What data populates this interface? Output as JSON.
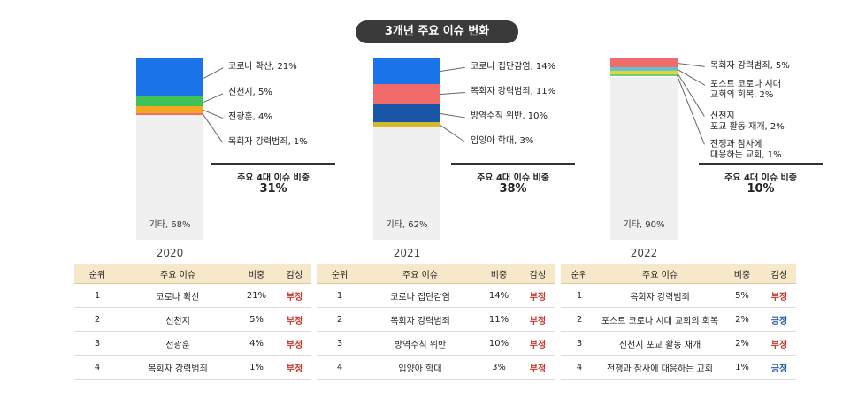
{
  "header": {
    "title": "3개년 주요 이슈 변화"
  },
  "chart_data": [
    {
      "type": "bar",
      "year": "2020",
      "segments": [
        {
          "label": "코로나 확산, 21%",
          "value": 21,
          "color": "#1a73e8"
        },
        {
          "label": "신천지, 5%",
          "value": 5,
          "color": "#3fc356"
        },
        {
          "label": "전광훈, 4%",
          "value": 4,
          "color": "#f5a623"
        },
        {
          "label": "목회자 강력범죄, 1%",
          "value": 1,
          "color": "#f26b6b"
        },
        {
          "label": "기타, 68%",
          "value": 68,
          "color": "#f0f0f0"
        }
      ],
      "summary_title": "주요 4대 이슈 비중",
      "summary_value": "31%"
    },
    {
      "type": "bar",
      "year": "2021",
      "segments": [
        {
          "label": "코로나 집단감염, 14%",
          "value": 14,
          "color": "#1a73e8"
        },
        {
          "label": "목회자 강력범죄, 11%",
          "value": 11,
          "color": "#f26b6b"
        },
        {
          "label": "방역수칙 위반, 10%",
          "value": 10,
          "color": "#1a56a8"
        },
        {
          "label": "입양아 학대, 3%",
          "value": 3,
          "color": "#d4b72a"
        },
        {
          "label": "기타, 62%",
          "value": 62,
          "color": "#f0f0f0"
        }
      ],
      "summary_title": "주요 4대 이슈 비중",
      "summary_value": "38%"
    },
    {
      "type": "bar",
      "year": "2022",
      "segments": [
        {
          "label": "목회자 강력범죄, 5%",
          "value": 5,
          "color": "#f26b6b"
        },
        {
          "label": "포스트 코로나 시대\n교회의 회복, 2%",
          "value": 2,
          "color": "#5ec4d4"
        },
        {
          "label": "신천지\n포교 활동 재개, 2%",
          "value": 2,
          "color": "#e8d43a"
        },
        {
          "label": "전쟁과 참사에\n대응하는 교회, 1%",
          "value": 1,
          "color": "#6fcf6f"
        },
        {
          "label": "기타, 90%",
          "value": 90,
          "color": "#f0f0f0"
        }
      ],
      "summary_title": "주요 4대 이슈 비중",
      "summary_value": "10%"
    }
  ],
  "tables": [
    {
      "headers": [
        "순위",
        "주요 이슈",
        "비중",
        "감성"
      ],
      "rows": [
        [
          "1",
          "코로나 확산",
          "21%",
          "부정"
        ],
        [
          "2",
          "신천지",
          "5%",
          "부정"
        ],
        [
          "3",
          "전광훈",
          "4%",
          "부정"
        ],
        [
          "4",
          "목회자 강력범죄",
          "1%",
          "부정"
        ]
      ]
    },
    {
      "headers": [
        "순위",
        "주요 이슈",
        "비중",
        "감성"
      ],
      "rows": [
        [
          "1",
          "코로나 집단감염",
          "14%",
          "부정"
        ],
        [
          "2",
          "목회자 강력범죄",
          "11%",
          "부정"
        ],
        [
          "3",
          "방역수칙 위반",
          "10%",
          "부정"
        ],
        [
          "4",
          "입양아 학대",
          "3%",
          "부정"
        ]
      ]
    },
    {
      "headers": [
        "순위",
        "주요 이슈",
        "비중",
        "감성"
      ],
      "rows": [
        [
          "1",
          "목회자 강력범죄",
          "5%",
          "부정"
        ],
        [
          "2",
          "포스트 코로나 시대 교회의 회복",
          "2%",
          "긍정"
        ],
        [
          "3",
          "신천지 포교 활동 재개",
          "2%",
          "부정"
        ],
        [
          "4",
          "전쟁과 참사에 대응하는 교회",
          "1%",
          "긍정"
        ]
      ]
    }
  ]
}
